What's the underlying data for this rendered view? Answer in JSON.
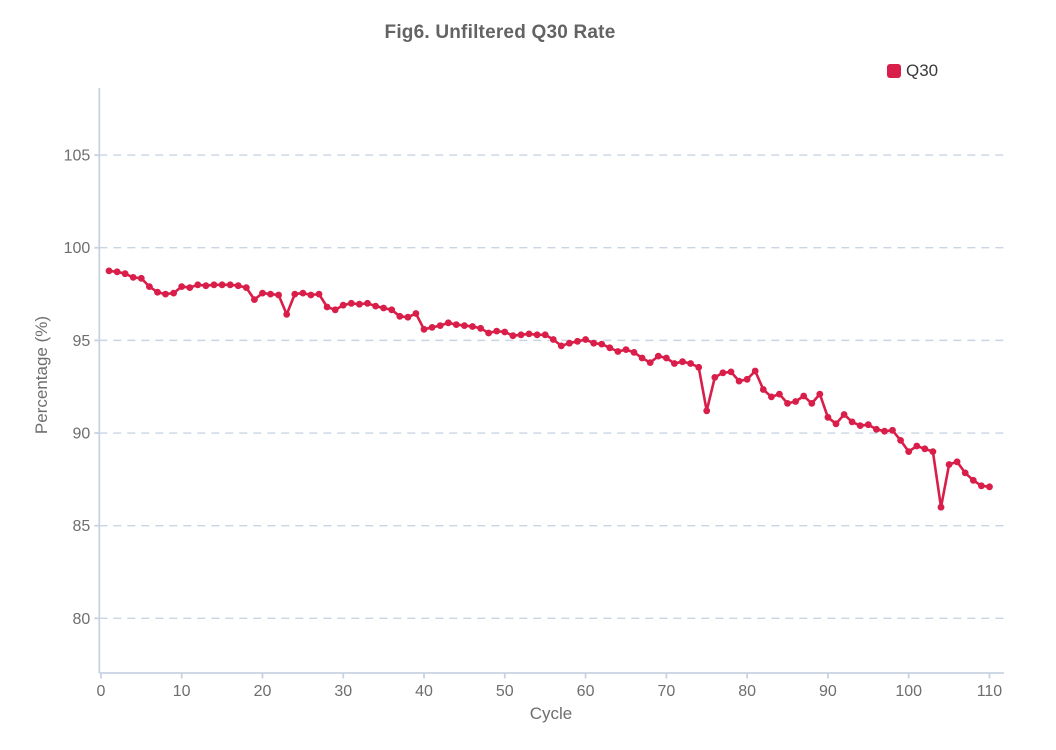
{
  "title": "Fig6. Unfiltered Q30 Rate",
  "legend": {
    "label": "Q30",
    "color": "#d81e49"
  },
  "colors": {
    "series": "#d81e49",
    "axis_line": "#c7d3e3",
    "gridline": "#c9d5e4",
    "tick_text": "#6e6e6e",
    "title_text": "#636363",
    "legend_text": "#3a3a3a",
    "background": "#ffffff"
  },
  "chart_data": {
    "type": "line",
    "title": "Fig6. Unfiltered Q30 Rate",
    "xlabel": "Cycle",
    "ylabel": "Percentage (%)",
    "legend_position": "top-right",
    "grid": "horizontal-dashed",
    "series_name": "Q30",
    "marker": "circle",
    "xlim": [
      -0.2,
      111.8
    ],
    "ylim": [
      77.05,
      108.62
    ],
    "x_ticks": [
      0,
      10,
      20,
      30,
      40,
      50,
      60,
      70,
      80,
      90,
      100,
      110
    ],
    "y_ticks": [
      80,
      85,
      90,
      95,
      100,
      105
    ],
    "x": [
      1,
      2,
      3,
      4,
      5,
      6,
      7,
      8,
      9,
      10,
      11,
      12,
      13,
      14,
      15,
      16,
      17,
      18,
      19,
      20,
      21,
      22,
      23,
      24,
      25,
      26,
      27,
      28,
      29,
      30,
      31,
      32,
      33,
      34,
      35,
      36,
      37,
      38,
      39,
      40,
      41,
      42,
      43,
      44,
      45,
      46,
      47,
      48,
      49,
      50,
      51,
      52,
      53,
      54,
      55,
      56,
      57,
      58,
      59,
      60,
      61,
      62,
      63,
      64,
      65,
      66,
      67,
      68,
      69,
      70,
      71,
      72,
      73,
      74,
      75,
      76,
      77,
      78,
      79,
      80,
      81,
      82,
      83,
      84,
      85,
      86,
      87,
      88,
      89,
      90,
      91,
      92,
      93,
      94,
      95,
      96,
      97,
      98,
      99,
      100,
      101,
      102,
      103,
      104,
      105,
      106,
      107,
      108,
      109,
      110
    ],
    "values": [
      98.75,
      98.7,
      98.6,
      98.4,
      98.35,
      97.9,
      97.6,
      97.5,
      97.55,
      97.9,
      97.85,
      98.0,
      97.95,
      98.0,
      98.0,
      98.0,
      97.95,
      97.85,
      97.2,
      97.55,
      97.5,
      97.45,
      96.4,
      97.5,
      97.55,
      97.45,
      97.5,
      96.8,
      96.65,
      96.9,
      97.0,
      96.95,
      97.0,
      96.85,
      96.75,
      96.65,
      96.3,
      96.25,
      96.45,
      95.6,
      95.7,
      95.8,
      95.95,
      95.85,
      95.8,
      95.75,
      95.65,
      95.4,
      95.5,
      95.45,
      95.25,
      95.3,
      95.35,
      95.3,
      95.3,
      95.05,
      94.7,
      94.85,
      94.95,
      95.05,
      94.85,
      94.8,
      94.6,
      94.4,
      94.5,
      94.35,
      94.05,
      93.8,
      94.15,
      94.05,
      93.75,
      93.85,
      93.75,
      93.55,
      91.2,
      93.0,
      93.25,
      93.3,
      92.8,
      92.9,
      93.35,
      92.35,
      91.95,
      92.1,
      91.6,
      91.7,
      92.0,
      91.6,
      92.1,
      90.85,
      90.5,
      91.0,
      90.6,
      90.4,
      90.45,
      90.2,
      90.1,
      90.15,
      89.6,
      89.0,
      89.3,
      89.15,
      89.0,
      86.0,
      88.3,
      88.45,
      87.85,
      87.45,
      87.15,
      87.1
    ]
  }
}
